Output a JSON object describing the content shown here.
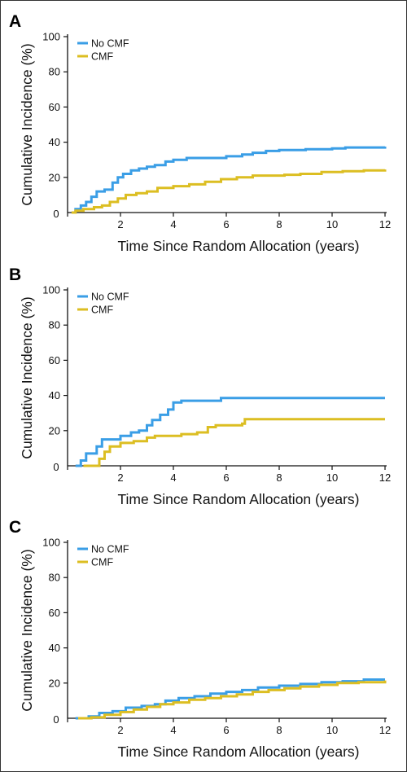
{
  "colors": {
    "no_cmf": "#3a9ee6",
    "cmf": "#dcbe22",
    "axis": "#111111"
  },
  "chart_data": [
    {
      "panel": "A",
      "type": "line",
      "xlabel": "Time Since Random Allocation (years)",
      "ylabel": "Cumulative Incidence (%)",
      "xlim": [
        0,
        12
      ],
      "ylim": [
        0,
        100
      ],
      "xticks": [
        0,
        2,
        4,
        6,
        8,
        10,
        12
      ],
      "yticks": [
        20,
        40,
        60,
        80,
        100
      ],
      "legend": "top-left",
      "series": [
        {
          "name": "No CMF",
          "color": "#3a9ee6",
          "points": [
            [
              0.15,
              0
            ],
            [
              0.3,
              2
            ],
            [
              0.5,
              4
            ],
            [
              0.7,
              6
            ],
            [
              0.9,
              9
            ],
            [
              1.1,
              12
            ],
            [
              1.4,
              13
            ],
            [
              1.7,
              17
            ],
            [
              1.9,
              20
            ],
            [
              2.1,
              22
            ],
            [
              2.4,
              24
            ],
            [
              2.7,
              25
            ],
            [
              3.0,
              26
            ],
            [
              3.3,
              27
            ],
            [
              3.7,
              29
            ],
            [
              4.0,
              30
            ],
            [
              4.5,
              31
            ],
            [
              5.0,
              31
            ],
            [
              5.5,
              31
            ],
            [
              6.0,
              32
            ],
            [
              6.6,
              33
            ],
            [
              7.0,
              34
            ],
            [
              7.5,
              35
            ],
            [
              8.0,
              35.5
            ],
            [
              9.0,
              36
            ],
            [
              10.0,
              36.5
            ],
            [
              10.5,
              37
            ],
            [
              11.0,
              37
            ],
            [
              12.0,
              37.5
            ]
          ]
        },
        {
          "name": "CMF",
          "color": "#dcbe22",
          "points": [
            [
              0.15,
              0
            ],
            [
              0.3,
              1
            ],
            [
              0.6,
              2
            ],
            [
              1.0,
              3
            ],
            [
              1.3,
              4
            ],
            [
              1.6,
              6
            ],
            [
              1.9,
              8
            ],
            [
              2.2,
              10
            ],
            [
              2.6,
              11
            ],
            [
              3.0,
              12
            ],
            [
              3.4,
              14
            ],
            [
              4.0,
              15
            ],
            [
              4.6,
              16
            ],
            [
              5.2,
              17.5
            ],
            [
              5.8,
              19
            ],
            [
              6.4,
              20
            ],
            [
              7.0,
              21
            ],
            [
              7.6,
              21
            ],
            [
              8.2,
              21.5
            ],
            [
              8.8,
              22
            ],
            [
              9.6,
              23
            ],
            [
              10.4,
              23.5
            ],
            [
              11.2,
              24
            ],
            [
              12.0,
              24.5
            ]
          ]
        }
      ]
    },
    {
      "panel": "B",
      "type": "line",
      "xlabel": "Time Since Random Allocation (years)",
      "ylabel": "Cumulative Incidence (%)",
      "xlim": [
        0,
        12
      ],
      "ylim": [
        0,
        100
      ],
      "xticks": [
        0,
        2,
        4,
        6,
        8,
        10,
        12
      ],
      "yticks": [
        20,
        40,
        60,
        80,
        100
      ],
      "legend": "top-left",
      "series": [
        {
          "name": "No CMF",
          "color": "#3a9ee6",
          "points": [
            [
              0.3,
              0
            ],
            [
              0.5,
              3
            ],
            [
              0.7,
              7
            ],
            [
              1.05,
              7
            ],
            [
              1.1,
              11
            ],
            [
              1.3,
              15
            ],
            [
              1.9,
              15
            ],
            [
              2.0,
              17
            ],
            [
              2.4,
              19
            ],
            [
              2.7,
              20
            ],
            [
              3.0,
              23
            ],
            [
              3.2,
              26
            ],
            [
              3.5,
              29
            ],
            [
              3.8,
              32
            ],
            [
              4.0,
              36
            ],
            [
              4.3,
              37
            ],
            [
              5.8,
              38.5
            ],
            [
              12.0,
              38.5
            ]
          ]
        },
        {
          "name": "CMF",
          "color": "#dcbe22",
          "points": [
            [
              0.6,
              0
            ],
            [
              1.1,
              0
            ],
            [
              1.2,
              4
            ],
            [
              1.4,
              8
            ],
            [
              1.6,
              11
            ],
            [
              2.0,
              13
            ],
            [
              2.5,
              14
            ],
            [
              3.0,
              16
            ],
            [
              3.3,
              17
            ],
            [
              4.3,
              18
            ],
            [
              4.9,
              19
            ],
            [
              5.3,
              22
            ],
            [
              5.6,
              23
            ],
            [
              6.6,
              24
            ],
            [
              6.7,
              26.5
            ],
            [
              12.0,
              26.5
            ]
          ]
        }
      ]
    },
    {
      "panel": "C",
      "type": "line",
      "xlabel": "Time Since Random Allocation (years)",
      "ylabel": "Cumulative Incidence (%)",
      "xlim": [
        0,
        12
      ],
      "ylim": [
        0,
        100
      ],
      "xticks": [
        0,
        2,
        4,
        6,
        8,
        10,
        12
      ],
      "yticks": [
        20,
        40,
        60,
        80,
        100
      ],
      "legend": "top-left",
      "series": [
        {
          "name": "No CMF",
          "color": "#3a9ee6",
          "points": [
            [
              0.3,
              0
            ],
            [
              0.8,
              1
            ],
            [
              1.2,
              3
            ],
            [
              1.7,
              4
            ],
            [
              2.2,
              6
            ],
            [
              2.8,
              7
            ],
            [
              3.3,
              8
            ],
            [
              3.7,
              10
            ],
            [
              4.2,
              11.5
            ],
            [
              4.8,
              12.5
            ],
            [
              5.4,
              14
            ],
            [
              6.0,
              15
            ],
            [
              6.6,
              16
            ],
            [
              7.2,
              17.5
            ],
            [
              8.0,
              18.5
            ],
            [
              8.8,
              19.5
            ],
            [
              9.6,
              20.5
            ],
            [
              10.4,
              21
            ],
            [
              11.2,
              22
            ],
            [
              12.0,
              22
            ]
          ]
        },
        {
          "name": "CMF",
          "color": "#dcbe22",
          "points": [
            [
              0.4,
              0
            ],
            [
              0.9,
              0.5
            ],
            [
              1.4,
              2
            ],
            [
              2.0,
              3.5
            ],
            [
              2.5,
              5
            ],
            [
              3.0,
              6.5
            ],
            [
              3.5,
              8
            ],
            [
              4.0,
              9
            ],
            [
              4.6,
              10.5
            ],
            [
              5.2,
              11.5
            ],
            [
              5.8,
              12.5
            ],
            [
              6.4,
              13.5
            ],
            [
              7.0,
              15
            ],
            [
              7.6,
              16
            ],
            [
              8.2,
              17
            ],
            [
              8.8,
              18
            ],
            [
              9.5,
              19
            ],
            [
              10.2,
              20
            ],
            [
              11.0,
              20.5
            ],
            [
              12.0,
              21.5
            ]
          ]
        }
      ]
    }
  ]
}
